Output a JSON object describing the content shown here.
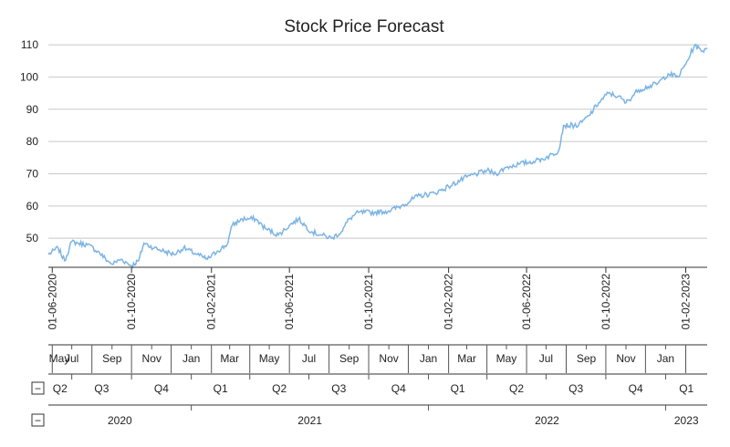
{
  "chart_data": {
    "type": "line",
    "title": "Stock Price Forecast",
    "xlabel": "",
    "ylabel": "",
    "ylim": [
      41,
      112
    ],
    "xlim": [
      "2020-05-26",
      "2023-03-06"
    ],
    "yticks": [
      50,
      60,
      70,
      80,
      90,
      100,
      110
    ],
    "grid": "horizontal",
    "legend": "none",
    "line_color": "#7cb4e4",
    "date_tick_labels": [
      "01-06-2020",
      "01-10-2020",
      "01-02-2021",
      "01-06-2021",
      "01-10-2021",
      "01-02-2022",
      "01-06-2022",
      "01-10-2022",
      "01-02-2023"
    ],
    "month_labels": [
      "May",
      "Jul",
      "Sep",
      "Nov",
      "Jan",
      "Mar",
      "May",
      "Jul",
      "Sep",
      "Nov",
      "Jan",
      "Mar",
      "May",
      "Jul",
      "Sep",
      "Nov",
      "Jan"
    ],
    "quarter_labels": [
      "Q2",
      "Q3",
      "Q4",
      "Q1",
      "Q2",
      "Q3",
      "Q4",
      "Q1",
      "Q2",
      "Q3",
      "Q4",
      "Q1"
    ],
    "year_labels": [
      "2020",
      "2021",
      "2022",
      "2023"
    ],
    "group_toggle_label": "−",
    "series": [
      {
        "x": [
          "2020-05-26",
          "2020-06-10",
          "2020-06-20",
          "2020-07-01",
          "2020-07-10",
          "2020-07-25",
          "2020-08-10",
          "2020-08-25",
          "2020-09-01",
          "2020-09-15",
          "2020-10-01",
          "2020-10-12",
          "2020-10-20",
          "2020-11-05",
          "2020-11-20",
          "2020-12-05",
          "2020-12-20",
          "2021-01-10",
          "2021-01-20",
          "2021-01-26",
          "2021-02-10",
          "2021-02-25",
          "2021-03-05",
          "2021-03-20",
          "2021-04-10",
          "2021-04-25",
          "2021-05-15",
          "2021-06-01",
          "2021-06-15",
          "2021-07-05",
          "2021-07-20",
          "2021-08-05",
          "2021-08-20",
          "2021-09-01",
          "2021-09-15",
          "2021-10-10",
          "2021-11-01",
          "2021-11-20",
          "2021-12-15",
          "2022-01-10",
          "2022-02-01",
          "2022-03-01",
          "2022-04-01",
          "2022-04-15",
          "2022-05-01",
          "2022-05-20",
          "2022-06-15",
          "2022-07-01",
          "2022-07-20",
          "2022-07-28",
          "2022-08-20",
          "2022-09-05",
          "2022-09-20",
          "2022-10-05",
          "2022-10-20",
          "2022-11-01",
          "2022-11-20",
          "2022-12-05",
          "2022-12-20",
          "2023-01-05",
          "2023-01-20",
          "2023-02-01",
          "2023-02-15",
          "2023-02-25",
          "2023-03-06"
        ],
        "y": [
          45,
          47,
          43,
          49,
          48.5,
          48,
          46,
          43,
          42,
          43.5,
          41.5,
          43,
          48.5,
          47,
          46,
          45,
          47,
          45,
          44,
          43.5,
          46,
          48,
          54,
          56,
          56,
          53,
          51,
          54,
          56,
          52,
          51,
          50,
          52,
          56,
          58,
          58,
          58.5,
          60,
          63,
          64,
          66,
          69,
          71,
          70,
          72,
          73,
          74,
          75,
          77,
          85,
          85,
          88,
          92,
          95,
          94,
          92,
          96,
          97,
          98,
          101,
          100,
          104,
          110,
          108,
          109
        ]
      }
    ]
  }
}
